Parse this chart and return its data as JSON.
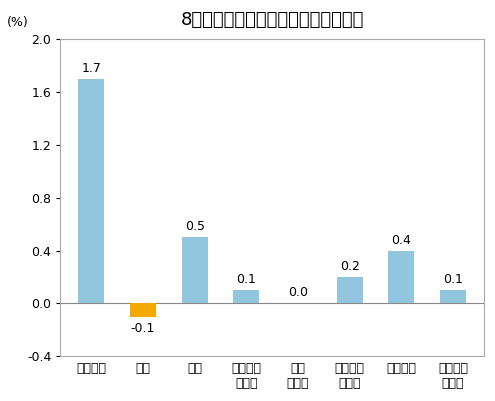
{
  "title": "8月份居民消费价格分类别环比涨跌幅",
  "ylabel": "(%)",
  "categories": [
    "食品烟酒",
    "衣着",
    "居住",
    "生活用品\n及服务",
    "交通\n和通信",
    "教育文化\n和娱乐",
    "医疗保健",
    "其他用品\n和服务"
  ],
  "values": [
    1.7,
    -0.1,
    0.5,
    0.1,
    0.0,
    0.2,
    0.4,
    0.1
  ],
  "bar_colors": [
    "#92C5DE",
    "#F4A900",
    "#92C5DE",
    "#92C5DE",
    "#92C5DE",
    "#92C5DE",
    "#92C5DE",
    "#92C5DE"
  ],
  "ylim": [
    -0.4,
    2.0
  ],
  "yticks": [
    -0.4,
    0.0,
    0.4,
    0.8,
    1.2,
    1.6,
    2.0
  ],
  "background_color": "#FFFFFF",
  "plot_bg_color": "#FFFFFF",
  "border_color": "#AAAAAA",
  "title_fontsize": 13,
  "label_fontsize": 9,
  "tick_fontsize": 9,
  "value_fontsize": 9,
  "bar_width": 0.5
}
